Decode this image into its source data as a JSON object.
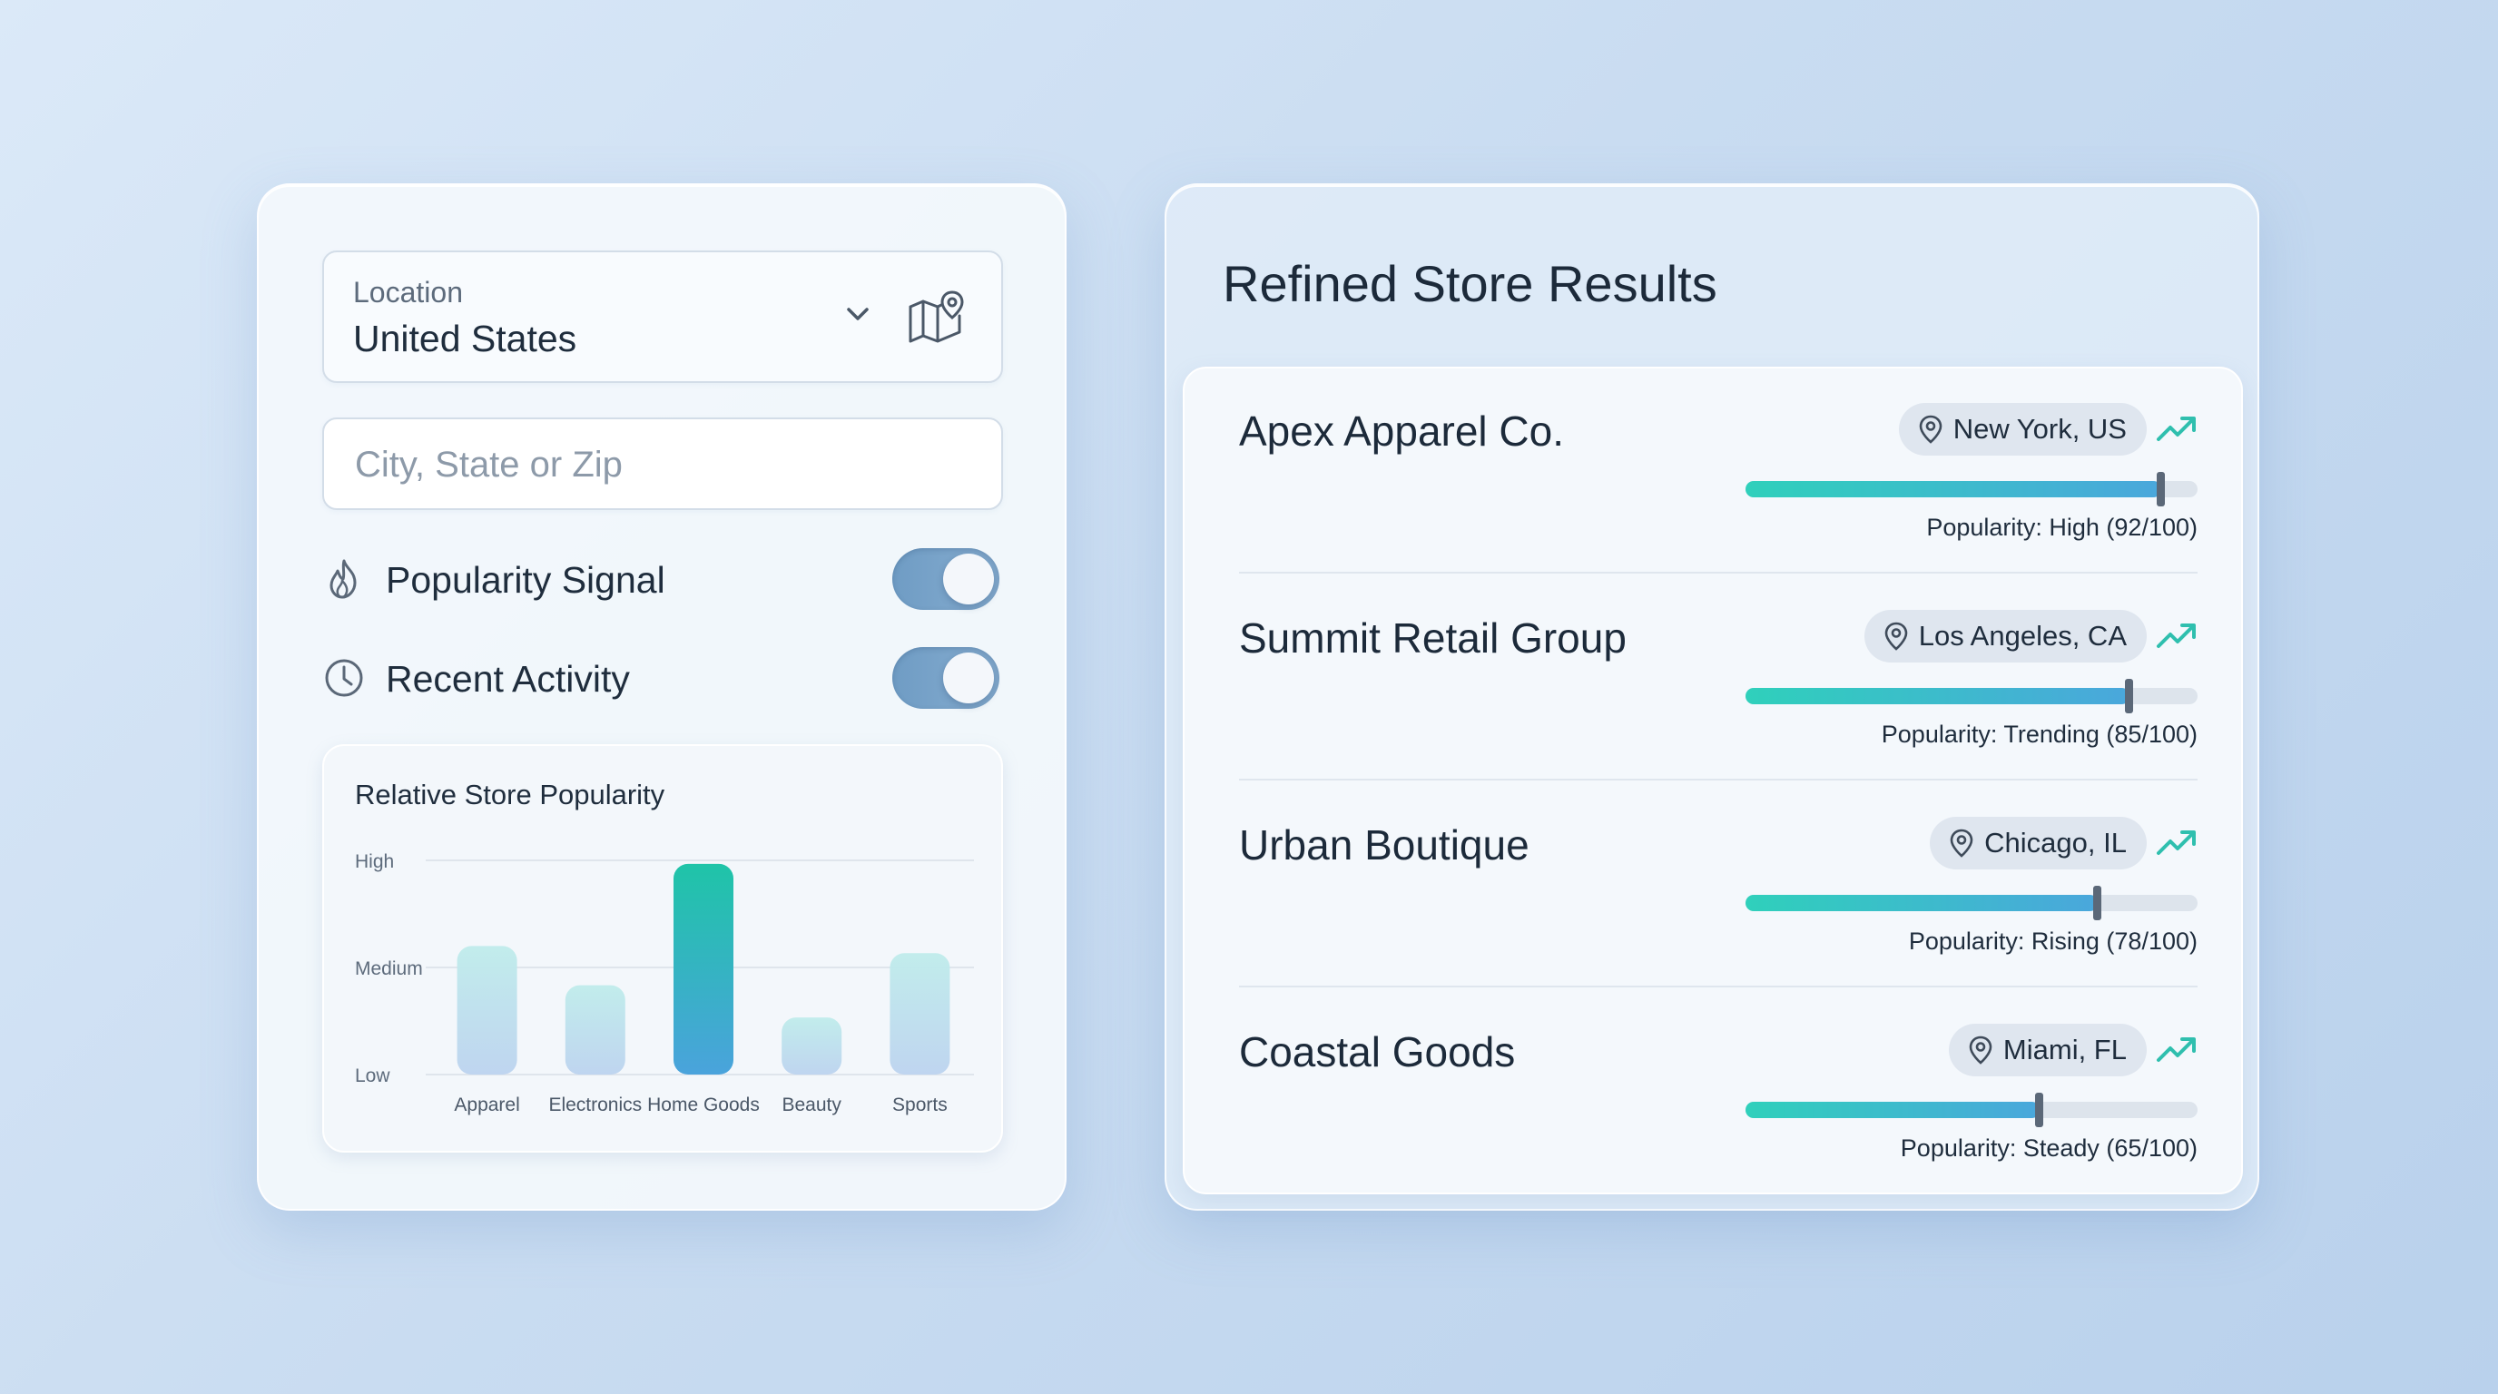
{
  "filters": {
    "location_label": "Location",
    "location_value": "United States",
    "city_placeholder": "City, State or Zip",
    "toggles": [
      {
        "label": "Popularity Signal",
        "icon": "flame-icon",
        "on": true
      },
      {
        "label": "Recent Activity",
        "icon": "clock-icon",
        "on": true
      }
    ]
  },
  "chart_data": {
    "type": "bar",
    "title": "Relative Store Popularity",
    "categories": [
      "Apparel",
      "Electronics",
      "Home Goods",
      "Beauty",
      "Sports"
    ],
    "values": [
      1.8,
      1.25,
      2.95,
      0.8,
      1.7
    ],
    "ylim": [
      0,
      3
    ],
    "y_tick_labels": [
      "Low",
      "Medium",
      "High"
    ],
    "y_tick_values": [
      0,
      1.5,
      3
    ],
    "highlighted_category": "Home Goods",
    "colors": {
      "bar": "#bfe9ec",
      "highlight": "#26c2ad"
    },
    "grid": true
  },
  "results": {
    "title": "Refined Store Results",
    "stores": [
      {
        "name": "Apex Apparel Co.",
        "location": "New York, US",
        "popularity_text": "Popularity: High (92/100)",
        "score": 92
      },
      {
        "name": "Summit Retail Group",
        "location": "Los Angeles, CA",
        "popularity_text": "Popularity: Trending (85/100)",
        "score": 85
      },
      {
        "name": "Urban Boutique",
        "location": "Chicago, IL",
        "popularity_text": "Popularity: Rising (78/100)",
        "score": 78
      },
      {
        "name": "Coastal Goods",
        "location": "Miami, FL",
        "popularity_text": "Popularity: Steady (65/100)",
        "score": 65
      }
    ],
    "accent_color": "#2fbfae"
  }
}
